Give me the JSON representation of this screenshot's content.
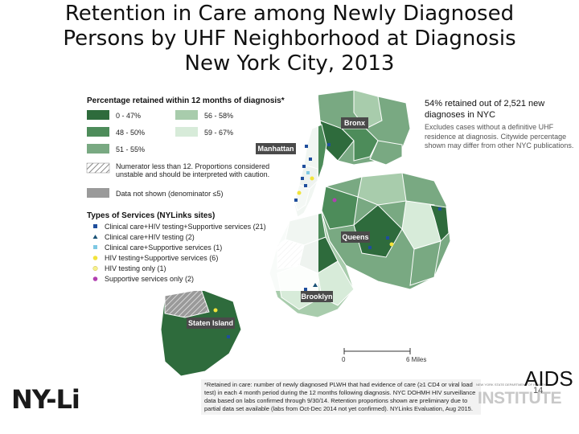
{
  "title": {
    "line1": "Retention in Care among Newly Diagnosed",
    "line2": "Persons by UHF Neighborhood at Diagnosis",
    "line3": "New York City, 2013"
  },
  "legend": {
    "title": "Percentage retained within 12 months of diagnosis*",
    "bins": [
      {
        "label": "0 - 47%",
        "color": "#2e6b3c"
      },
      {
        "label": "48 - 50%",
        "color": "#4d8c5a"
      },
      {
        "label": "51 - 55%",
        "color": "#79a982"
      },
      {
        "label": "56 - 58%",
        "color": "#a8ccac"
      },
      {
        "label": "59 - 67%",
        "color": "#d7ebd9"
      }
    ],
    "hatched_label_1": "Numerator less than 12. Proportions considered",
    "hatched_label_2": "unstable and should be interpreted with caution.",
    "not_shown_label": "Data not shown (denominator ≤5)",
    "services_title": "Types of Services (NYLinks sites)",
    "services": [
      {
        "label": "Clinical care+HIV testing+Supportive services (21)",
        "color": "#1f4e9c",
        "shape": "square"
      },
      {
        "label": "Clinical care+HIV testing (2)",
        "color": "#1a5276",
        "shape": "triangle"
      },
      {
        "label": "Clinical care+Supportive services (1)",
        "color": "#7ec8e3",
        "shape": "square"
      },
      {
        "label": "HIV testing+Supportive services (6)",
        "color": "#f2e33a",
        "shape": "circle"
      },
      {
        "label": "HIV testing only (1)",
        "color": "#f7f08a",
        "shape": "circle"
      },
      {
        "label": "Supportive services only (2)",
        "color": "#b13fb0",
        "shape": "circle"
      }
    ]
  },
  "boroughs": {
    "bronx": "Bronx",
    "manhattan": "Manhattan",
    "queens": "Queens",
    "brooklyn": "Brooklyn",
    "staten_island": "Staten Island"
  },
  "stat": {
    "main": "54% retained out of 2,521 new diagnoses in NYC",
    "note": "Excludes cases without a definitive UHF residence at diagnosis. Citywide percentage shown may differ from other NYC publications."
  },
  "scale": {
    "zero": "0",
    "miles": "6 Miles"
  },
  "footnote": "*Retained in care: number of newly diagnosed PLWH that had evidence of care (≥1 CD4 or viral load test) in each 4 month period during the 12 months following diagnosis. NYC DOHMH HIV surveillance data based on labs confirmed through 9/30/14. Retention proportions shown are preliminary due to partial data set available (labs from Oct-Dec 2014 not yet confirmed). NYLinks Evaluation, Aug 2015.",
  "logos": {
    "nylinks_partial": "NY-Li",
    "aids": "AIDS",
    "institute": "INSTITUTE",
    "org_small": "NEW YORK STATE DEPARTMENT OF HEALTH"
  },
  "page_number": "14"
}
